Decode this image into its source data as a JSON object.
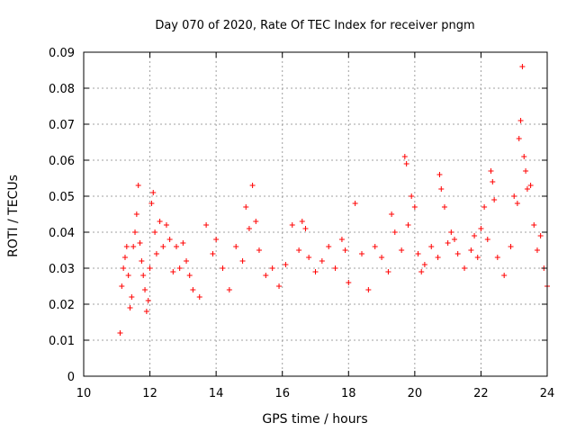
{
  "chart_data": {
    "type": "scatter",
    "title": "Day 070 of 2020, Rate Of TEC Index for receiver pngm",
    "xlabel": "GPS time / hours",
    "ylabel": "ROTI / TECUs",
    "xlim": [
      10,
      24
    ],
    "ylim": [
      0,
      0.09
    ],
    "grid": true,
    "marker": "+",
    "color": "#ff0000",
    "x_ticks": [
      "10",
      "12",
      "14",
      "16",
      "18",
      "20",
      "22",
      "24"
    ],
    "y_ticks": [
      "0",
      "0.01",
      "0.02",
      "0.03",
      "0.04",
      "0.05",
      "0.06",
      "0.07",
      "0.08",
      "0.09"
    ],
    "series": [
      {
        "name": "ROTI",
        "points": [
          [
            11.1,
            0.012
          ],
          [
            11.15,
            0.025
          ],
          [
            11.2,
            0.03
          ],
          [
            11.25,
            0.033
          ],
          [
            11.3,
            0.036
          ],
          [
            11.35,
            0.028
          ],
          [
            11.4,
            0.019
          ],
          [
            11.45,
            0.022
          ],
          [
            11.5,
            0.036
          ],
          [
            11.55,
            0.04
          ],
          [
            11.6,
            0.045
          ],
          [
            11.65,
            0.053
          ],
          [
            11.7,
            0.037
          ],
          [
            11.75,
            0.032
          ],
          [
            11.8,
            0.028
          ],
          [
            11.85,
            0.024
          ],
          [
            11.9,
            0.018
          ],
          [
            11.95,
            0.021
          ],
          [
            12.0,
            0.03
          ],
          [
            12.05,
            0.048
          ],
          [
            12.1,
            0.051
          ],
          [
            12.15,
            0.04
          ],
          [
            12.2,
            0.034
          ],
          [
            12.3,
            0.043
          ],
          [
            12.4,
            0.036
          ],
          [
            12.5,
            0.042
          ],
          [
            12.6,
            0.038
          ],
          [
            12.7,
            0.029
          ],
          [
            12.8,
            0.036
          ],
          [
            12.9,
            0.03
          ],
          [
            13.0,
            0.037
          ],
          [
            13.1,
            0.032
          ],
          [
            13.2,
            0.028
          ],
          [
            13.3,
            0.024
          ],
          [
            13.5,
            0.022
          ],
          [
            13.7,
            0.042
          ],
          [
            13.9,
            0.034
          ],
          [
            14.0,
            0.038
          ],
          [
            14.2,
            0.03
          ],
          [
            14.4,
            0.024
          ],
          [
            14.6,
            0.036
          ],
          [
            14.8,
            0.032
          ],
          [
            14.9,
            0.047
          ],
          [
            15.0,
            0.041
          ],
          [
            15.1,
            0.053
          ],
          [
            15.2,
            0.043
          ],
          [
            15.3,
            0.035
          ],
          [
            15.5,
            0.028
          ],
          [
            15.7,
            0.03
          ],
          [
            15.9,
            0.025
          ],
          [
            16.1,
            0.031
          ],
          [
            16.3,
            0.042
          ],
          [
            16.5,
            0.035
          ],
          [
            16.6,
            0.043
          ],
          [
            16.7,
            0.041
          ],
          [
            16.8,
            0.033
          ],
          [
            17.0,
            0.029
          ],
          [
            17.2,
            0.032
          ],
          [
            17.4,
            0.036
          ],
          [
            17.6,
            0.03
          ],
          [
            17.8,
            0.038
          ],
          [
            17.9,
            0.035
          ],
          [
            18.0,
            0.026
          ],
          [
            18.2,
            0.048
          ],
          [
            18.4,
            0.034
          ],
          [
            18.6,
            0.024
          ],
          [
            18.8,
            0.036
          ],
          [
            19.0,
            0.033
          ],
          [
            19.2,
            0.029
          ],
          [
            19.3,
            0.045
          ],
          [
            19.4,
            0.04
          ],
          [
            19.6,
            0.035
          ],
          [
            19.7,
            0.061
          ],
          [
            19.75,
            0.059
          ],
          [
            19.8,
            0.042
          ],
          [
            19.9,
            0.05
          ],
          [
            20.0,
            0.047
          ],
          [
            20.1,
            0.034
          ],
          [
            20.2,
            0.029
          ],
          [
            20.3,
            0.031
          ],
          [
            20.5,
            0.036
          ],
          [
            20.7,
            0.033
          ],
          [
            20.75,
            0.056
          ],
          [
            20.8,
            0.052
          ],
          [
            20.9,
            0.047
          ],
          [
            21.0,
            0.037
          ],
          [
            21.1,
            0.04
          ],
          [
            21.2,
            0.038
          ],
          [
            21.3,
            0.034
          ],
          [
            21.5,
            0.03
          ],
          [
            21.7,
            0.035
          ],
          [
            21.8,
            0.039
          ],
          [
            21.9,
            0.033
          ],
          [
            22.0,
            0.041
          ],
          [
            22.1,
            0.047
          ],
          [
            22.2,
            0.038
          ],
          [
            22.3,
            0.057
          ],
          [
            22.35,
            0.054
          ],
          [
            22.4,
            0.049
          ],
          [
            22.5,
            0.033
          ],
          [
            22.7,
            0.028
          ],
          [
            22.9,
            0.036
          ],
          [
            23.0,
            0.05
          ],
          [
            23.1,
            0.048
          ],
          [
            23.15,
            0.066
          ],
          [
            23.2,
            0.071
          ],
          [
            23.25,
            0.086
          ],
          [
            23.3,
            0.061
          ],
          [
            23.35,
            0.057
          ],
          [
            23.4,
            0.052
          ],
          [
            23.5,
            0.053
          ],
          [
            23.6,
            0.042
          ],
          [
            23.7,
            0.035
          ],
          [
            23.8,
            0.039
          ],
          [
            23.9,
            0.03
          ],
          [
            24.0,
            0.025
          ]
        ]
      }
    ]
  }
}
